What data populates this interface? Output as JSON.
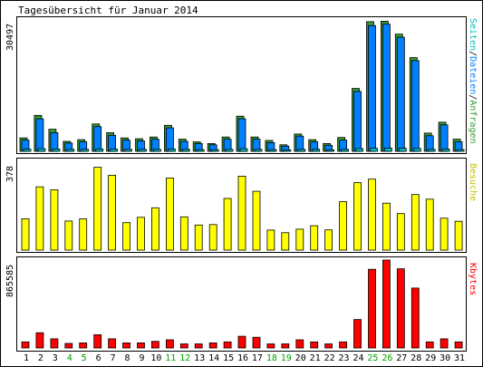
{
  "colors": {
    "hits": "#339933",
    "files": "#0080ff",
    "pages": "#00c0c0",
    "visits": "#ffff00",
    "kbytes": "#ff0000",
    "weekday_label": "#000000",
    "weekend_label": "#00a000",
    "border": "#000000",
    "background": "#ffffff"
  },
  "chart_data": {
    "type": "bar",
    "title": "Tagesübersicht für Januar 2014",
    "categories": [
      "1",
      "2",
      "3",
      "4",
      "5",
      "6",
      "7",
      "8",
      "9",
      "10",
      "11",
      "12",
      "13",
      "14",
      "15",
      "16",
      "17",
      "18",
      "19",
      "20",
      "21",
      "22",
      "23",
      "24",
      "25",
      "26",
      "27",
      "28",
      "29",
      "30",
      "31"
    ],
    "weekend_days": [
      "4",
      "5",
      "11",
      "12",
      "18",
      "19",
      "25",
      "26"
    ],
    "panels": {
      "requests": {
        "max_label": "30497",
        "ylim": [
          0,
          30497
        ],
        "label_parts": [
          {
            "text": "Seiten",
            "color": "#00c0c0"
          },
          {
            "text": "/",
            "color": "#000000"
          },
          {
            "text": "Dateien",
            "color": "#0080ff"
          },
          {
            "text": "/",
            "color": "#000000"
          },
          {
            "text": "Anfragen",
            "color": "#339933"
          }
        ],
        "series": [
          {
            "name": "Anfragen",
            "values": [
              3100,
              8300,
              5100,
              2300,
              2700,
              6300,
              4300,
              3100,
              2900,
              3300,
              6000,
              2800,
              2200,
              1800,
              3300,
              8100,
              3300,
              2500,
              1500,
              4000,
              2700,
              1800,
              3200,
              14500,
              29900,
              30000,
              27000,
              21600,
              4200,
              6700,
              2800
            ]
          },
          {
            "name": "Dateien",
            "values": [
              2600,
              7500,
              4300,
              1900,
              2200,
              5700,
              3700,
              2600,
              2400,
              2800,
              5400,
              2300,
              1800,
              1500,
              2800,
              7500,
              2800,
              2000,
              1200,
              3500,
              2200,
              1400,
              2600,
              13800,
              29000,
              29300,
              26300,
              20900,
              3600,
              6100,
              2200
            ]
          },
          {
            "name": "Seiten",
            "values": [
              500,
              600,
              550,
              450,
              450,
              550,
              500,
              450,
              450,
              450,
              550,
              450,
              400,
              400,
              450,
              600,
              450,
              400,
              350,
              450,
              450,
              350,
              450,
              650,
              700,
              750,
              700,
              650,
              450,
              500,
              400
            ]
          }
        ]
      },
      "visits": {
        "max_label": "378",
        "ylim": [
          0,
          378
        ],
        "label": "Besuche",
        "series": [
          {
            "name": "Besuche",
            "values": [
              135,
              272,
              259,
              125,
              134,
              356,
              322,
              118,
              141,
              182,
              310,
              143,
              108,
              110,
              222,
              318,
              253,
              86,
              75,
              90,
              105,
              87,
              208,
              290,
              305,
              202,
              157,
              239,
              219,
              137,
              124
            ]
          }
        ]
      },
      "kbytes": {
        "max_label": "865585",
        "ylim": [
          0,
          865585
        ],
        "label": "Kbytes",
        "series": [
          {
            "name": "Kbytes",
            "values": [
              60000,
              150000,
              90000,
              45000,
              50000,
              130000,
              90000,
              50000,
              50000,
              65000,
              80000,
              40000,
              40000,
              50000,
              60000,
              115000,
              105000,
              40000,
              40000,
              80000,
              60000,
              40000,
              60000,
              280000,
              775000,
              865585,
              780000,
              590000,
              60000,
              90000,
              60000
            ]
          }
        ]
      }
    }
  }
}
